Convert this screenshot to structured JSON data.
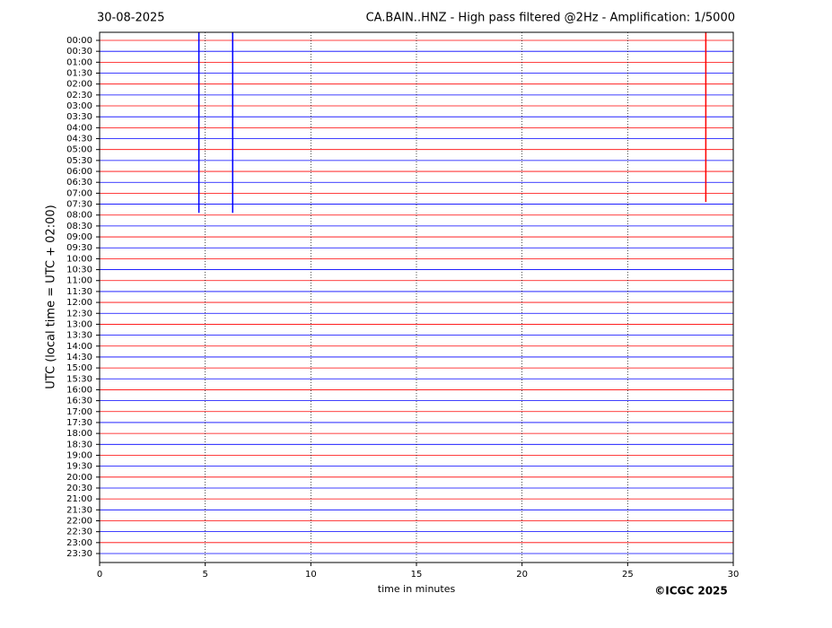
{
  "chart_data": {
    "type": "helicorder",
    "date": "30-08-2025",
    "title": "CA.BAIN..HNZ - High pass filtered @2Hz - Amplification: 1/5000",
    "y_label": "UTC (local time = UTC + 02:00)",
    "x_label": "time in minutes",
    "credit": "©ICGC 2025",
    "categories": [
      "00:00",
      "00:30",
      "01:00",
      "01:30",
      "02:00",
      "02:30",
      "03:00",
      "03:30",
      "04:00",
      "04:30",
      "05:00",
      "05:30",
      "06:00",
      "06:30",
      "07:00",
      "07:30",
      "08:00",
      "08:30",
      "09:00",
      "09:30",
      "10:00",
      "10:30",
      "11:00",
      "11:30",
      "12:00",
      "12:30",
      "13:00",
      "13:30",
      "14:00",
      "14:30",
      "15:00",
      "15:30",
      "16:00",
      "16:30",
      "17:00",
      "17:30",
      "18:00",
      "18:30",
      "19:00",
      "19:30",
      "20:00",
      "20:30",
      "21:00",
      "21:30",
      "22:00",
      "22:30",
      "23:00",
      "23:30"
    ],
    "colors": [
      "#ff0000",
      "#0000ff"
    ],
    "xlim": [
      0,
      30
    ],
    "xticks": [
      0,
      5,
      10,
      15,
      20,
      25,
      30
    ],
    "grid": true,
    "events": [
      {
        "x": 4.7,
        "span": [
          -0.75,
          15.8
        ],
        "color": "#0000ff"
      },
      {
        "x": 6.3,
        "span": [
          -0.75,
          15.8
        ],
        "color": "#0000ff"
      },
      {
        "x": 28.7,
        "span": [
          -0.75,
          14.8
        ],
        "color": "#ff0000"
      }
    ]
  }
}
